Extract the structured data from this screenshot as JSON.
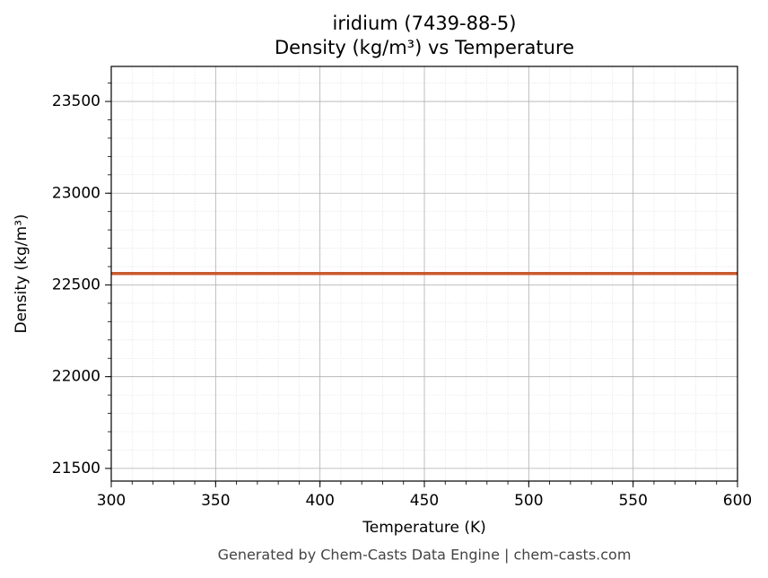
{
  "chart_data": {
    "type": "line",
    "title": "iridium (7439-88-5)",
    "subtitle": "Density (kg/m³) vs Temperature",
    "x_label": "Temperature (K)",
    "y_label": "Density (kg/m³)",
    "x": [
      300,
      600
    ],
    "series": [
      {
        "name": "Density",
        "color": "#c85a2e",
        "values": [
          22562,
          22562
        ]
      }
    ],
    "xlim": [
      300,
      600
    ],
    "xticks": [
      300,
      350,
      400,
      450,
      500,
      550,
      600
    ],
    "ylim": [
      21431,
      23691
    ],
    "yticks": [
      21500,
      22000,
      22500,
      23000,
      23500
    ],
    "grid": true,
    "minor_grid": true
  },
  "footer": "Generated by Chem-Casts Data Engine | chem-casts.com"
}
